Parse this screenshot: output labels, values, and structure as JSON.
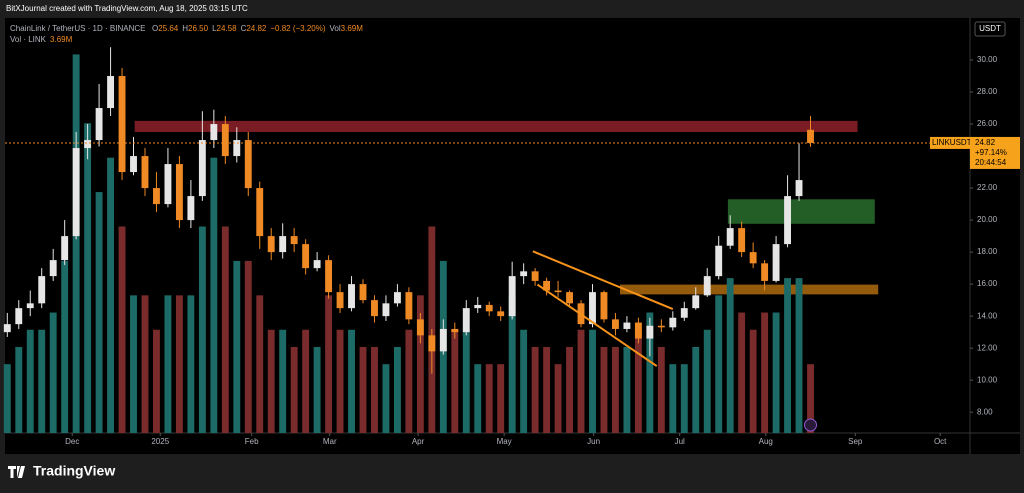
{
  "header": {
    "attribution": "BitXJournal created with TradingView.com, Aug 18, 2025 03:15 UTC",
    "brand": "TradingView"
  },
  "chart_data": {
    "type": "candlestick",
    "legend": {
      "symbol": "ChainLink / TetherUS · 1D · BINANCE",
      "stats": [
        "O",
        "25.64",
        "H",
        "26.50",
        "L",
        "24.58",
        "C",
        "24.82",
        "−0.82 (−3.20%)",
        "Vol",
        "3.69M"
      ],
      "volume": "Vol · LINK",
      "volume_value": "3.69M"
    },
    "currency": "USDT",
    "price_label": {
      "symbol": "LINKUSDT",
      "change": "+97.14%",
      "countdown": "20:44:54"
    },
    "open": [
      13.0,
      13.5,
      14.5,
      14.8,
      16.5,
      17.5,
      19,
      24.5,
      25,
      27,
      29,
      23,
      24,
      22,
      21,
      23.5,
      20,
      21.5,
      25,
      26,
      24,
      25,
      22,
      19,
      18,
      19,
      18.5,
      17,
      17.5,
      15.5,
      14.5,
      16,
      15,
      14,
      14.8,
      15.5,
      13.8,
      12.8,
      11.8,
      13.2,
      13,
      14.5,
      14.7,
      14.3,
      14,
      16.5,
      16.8,
      16.2,
      15.6,
      15.5,
      14.8,
      13.5,
      15.5,
      13.8,
      13.2,
      13.6,
      12.6,
      13.4,
      13.3,
      13.9,
      14.5,
      15.3,
      16.5,
      18.4,
      19.5,
      18,
      17.3,
      16.2,
      18.5,
      21.5,
      25.64
    ],
    "high": [
      14.2,
      15,
      15.6,
      17,
      18.2,
      20,
      25.5,
      26,
      28.5,
      30.8,
      29.5,
      25.2,
      24.5,
      23,
      24.5,
      24,
      22.5,
      26.8,
      26.9,
      26.5,
      25.8,
      25.5,
      22.4,
      19.5,
      19.8,
      19.5,
      18.8,
      18,
      17.8,
      16,
      16.5,
      16.3,
      15.3,
      15.3,
      16,
      15.8,
      14.2,
      13.2,
      13.8,
      13.6,
      15,
      15.2,
      14.9,
      14.6,
      17.4,
      17.3,
      17,
      16.4,
      16.2,
      15.6,
      15,
      16,
      15.6,
      14.2,
      14,
      13.9,
      13.9,
      13.8,
      14.3,
      14.9,
      15.8,
      17,
      19,
      20.3,
      19.9,
      18.6,
      17.5,
      19,
      22.8,
      24.8,
      26.5
    ],
    "low": [
      12.7,
      13.2,
      14,
      14.5,
      16.2,
      17.2,
      18.8,
      23.8,
      24.6,
      26.5,
      22.5,
      22.8,
      21.5,
      20.5,
      20.8,
      19.5,
      19.5,
      21.2,
      24.5,
      23.5,
      23.6,
      21.5,
      18.2,
      17.5,
      17.6,
      18,
      16.6,
      16.8,
      15.1,
      14.2,
      14.3,
      14.8,
      13.6,
      13.7,
      14.6,
      13.5,
      12.3,
      10.4,
      11.6,
      12.6,
      12.8,
      14.2,
      14,
      13.7,
      13.8,
      16,
      15.9,
      15.3,
      15.2,
      14.6,
      13.3,
      13.3,
      13.6,
      12.8,
      13,
      12.3,
      11.5,
      13,
      13.1,
      13.7,
      14.4,
      15.2,
      16.3,
      18.2,
      17.7,
      17,
      15.6,
      16.1,
      18.3,
      21.2,
      24.58
    ],
    "close": [
      13.5,
      14.5,
      14.8,
      16.5,
      17.5,
      19,
      24.5,
      25,
      27,
      29,
      23,
      24,
      22,
      21,
      23.5,
      20,
      21.5,
      25,
      26,
      24,
      25,
      22,
      19,
      18,
      19,
      18.5,
      17,
      17.5,
      15.5,
      14.5,
      16,
      15,
      14,
      14.8,
      15.5,
      13.8,
      12.8,
      11.8,
      13.2,
      13,
      14.5,
      14.7,
      14.3,
      14,
      16.5,
      16.8,
      16.2,
      15.6,
      15.5,
      14.8,
      13.5,
      15.5,
      13.8,
      13.2,
      13.6,
      12.6,
      13.4,
      13.3,
      13.9,
      14.5,
      15.3,
      16.5,
      18.4,
      19.5,
      18,
      17.3,
      16.2,
      18.5,
      21.5,
      22.5,
      24.82
    ],
    "volume": [
      2,
      2.5,
      3,
      3,
      3.5,
      5,
      11,
      9,
      7,
      8,
      6,
      4,
      4,
      3,
      4,
      4,
      4,
      6,
      8,
      6,
      5,
      5,
      4,
      3,
      3,
      2.5,
      3,
      2.5,
      4,
      3,
      3,
      2.5,
      2.5,
      2,
      2.5,
      3,
      4,
      6,
      5,
      3,
      3,
      2,
      2,
      2,
      4,
      3,
      2.5,
      2.5,
      2,
      2.5,
      3,
      3,
      2.5,
      2.5,
      2.5,
      3,
      3.5,
      2.5,
      2,
      2,
      2.5,
      3,
      4,
      4.5,
      3.5,
      3,
      3.5,
      3.5,
      4.5,
      4.5,
      2
    ],
    "volume_ylim": [
      0,
      12
    ],
    "up_color": "#e6e6e6",
    "down_color": "#f08a24",
    "volume_up_color": "#1d6b66",
    "volume_down_color": "#7a2b2b",
    "xlim": [
      -0.2,
      83.9
    ],
    "xticks": [
      {
        "value": 5.66,
        "label": "Dec"
      },
      {
        "value": 13.33,
        "label": "2025"
      },
      {
        "value": 21.3,
        "label": "Feb"
      },
      {
        "value": 28.1,
        "label": "Mar"
      },
      {
        "value": 35.8,
        "label": "Apr"
      },
      {
        "value": 43.3,
        "label": "May"
      },
      {
        "value": 51.1,
        "label": "Jun"
      },
      {
        "value": 58.6,
        "label": "Jul"
      },
      {
        "value": 66.1,
        "label": "Aug"
      },
      {
        "value": 73.9,
        "label": "Sep"
      },
      {
        "value": 81.3,
        "label": "Oct"
      }
    ],
    "ylim": [
      6.7,
      32.5
    ],
    "yticks": [
      {
        "value": 8,
        "label": "8.00"
      },
      {
        "value": 10,
        "label": "10.00"
      },
      {
        "value": 12,
        "label": "12.00"
      },
      {
        "value": 14,
        "label": "14.00"
      },
      {
        "value": 16,
        "label": "16.00"
      },
      {
        "value": 18,
        "label": "18.00"
      },
      {
        "value": 20,
        "label": "20.00"
      },
      {
        "value": 22,
        "label": "22.00"
      },
      {
        "value": 24,
        "label": "24.00"
      },
      {
        "value": 26,
        "label": "26.00"
      },
      {
        "value": 28,
        "label": "28.00"
      },
      {
        "value": 30,
        "label": "30.00"
      }
    ],
    "zones": [
      {
        "x": [
          11.1,
          74.1
        ],
        "y": [
          25.5,
          26.2
        ],
        "color": "#a3262f"
      },
      {
        "x": [
          62.8,
          75.6
        ],
        "y": [
          19.77,
          21.3
        ],
        "color": "#2e7d32"
      },
      {
        "x": [
          53.4,
          75.9
        ],
        "y": [
          15.36,
          15.97
        ],
        "color": "#c77a12"
      }
    ],
    "trendlines": [
      {
        "x": [
          45.8,
          58.0
        ],
        "y": [
          18.05,
          14.44
        ],
        "color": "#f7931a"
      },
      {
        "x": [
          46.2,
          56.6
        ],
        "y": [
          15.97,
          10.88
        ],
        "color": "#f7931a"
      }
    ]
  }
}
